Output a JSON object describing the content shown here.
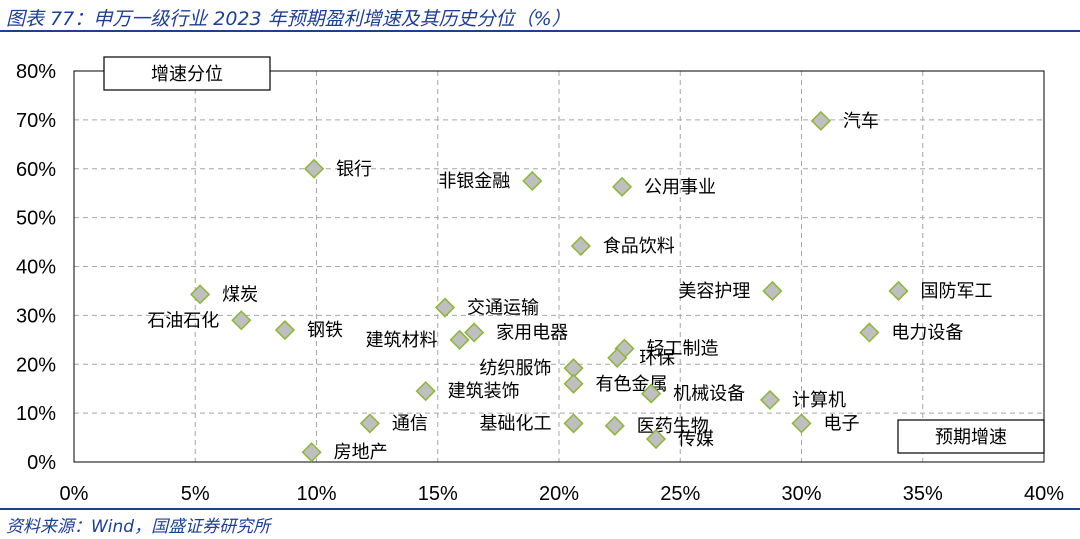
{
  "header": {
    "title": "图表 77：申万一级行业 2023 年预期盈利增速及其历史分位（%）"
  },
  "footer": {
    "source": "资料来源：Wind，国盛证券研究所"
  },
  "chart_data": {
    "type": "scatter",
    "xlabel": "预期增速",
    "ylabel": "增速分位",
    "xlim": [
      0,
      40
    ],
    "ylim": [
      0,
      80
    ],
    "x_ticks": [
      "0%",
      "5%",
      "10%",
      "15%",
      "20%",
      "25%",
      "30%",
      "35%",
      "40%"
    ],
    "y_ticks": [
      "0%",
      "10%",
      "20%",
      "30%",
      "40%",
      "50%",
      "60%",
      "70%",
      "80%"
    ],
    "grid": "dashed",
    "marker": "diamond",
    "marker_fill": "#bfbfbf",
    "marker_stroke": "#8db43c",
    "points": [
      {
        "name": "汽车",
        "x": 30.8,
        "y": 69.8,
        "pos": "right"
      },
      {
        "name": "银行",
        "x": 9.9,
        "y": 60.0,
        "pos": "right"
      },
      {
        "name": "非银金融",
        "x": 18.9,
        "y": 57.5,
        "pos": "left"
      },
      {
        "name": "公用事业",
        "x": 22.6,
        "y": 56.3,
        "pos": "right"
      },
      {
        "name": "食品饮料",
        "x": 20.9,
        "y": 44.2,
        "pos": "right"
      },
      {
        "name": "煤炭",
        "x": 5.2,
        "y": 34.3,
        "pos": "right"
      },
      {
        "name": "美容护理",
        "x": 28.8,
        "y": 35.0,
        "pos": "left"
      },
      {
        "name": "国防军工",
        "x": 34.0,
        "y": 35.0,
        "pos": "right"
      },
      {
        "name": "交通运输",
        "x": 15.3,
        "y": 31.6,
        "pos": "right"
      },
      {
        "name": "石油石化",
        "x": 6.9,
        "y": 29.0,
        "pos": "left"
      },
      {
        "name": "钢铁",
        "x": 8.7,
        "y": 27.0,
        "pos": "right"
      },
      {
        "name": "建筑材料",
        "x": 15.9,
        "y": 25.0,
        "pos": "left"
      },
      {
        "name": "家用电器",
        "x": 16.5,
        "y": 26.5,
        "pos": "right"
      },
      {
        "name": "电力设备",
        "x": 32.8,
        "y": 26.5,
        "pos": "right"
      },
      {
        "name": "轻工制造",
        "x": 22.7,
        "y": 23.2,
        "pos": "right"
      },
      {
        "name": "环保",
        "x": 22.4,
        "y": 21.3,
        "pos": "right"
      },
      {
        "name": "纺织服饰",
        "x": 20.6,
        "y": 19.2,
        "pos": "left"
      },
      {
        "name": "有色金属",
        "x": 20.6,
        "y": 16.0,
        "pos": "right"
      },
      {
        "name": "建筑装饰",
        "x": 14.5,
        "y": 14.5,
        "pos": "right"
      },
      {
        "name": "机械设备",
        "x": 23.8,
        "y": 14.0,
        "pos": "right"
      },
      {
        "name": "计算机",
        "x": 28.7,
        "y": 12.7,
        "pos": "right"
      },
      {
        "name": "通信",
        "x": 12.2,
        "y": 7.9,
        "pos": "right"
      },
      {
        "name": "基础化工",
        "x": 20.6,
        "y": 7.9,
        "pos": "left"
      },
      {
        "name": "医药生物",
        "x": 22.3,
        "y": 7.4,
        "pos": "right"
      },
      {
        "name": "电子",
        "x": 30.0,
        "y": 7.9,
        "pos": "right"
      },
      {
        "name": "传媒",
        "x": 24.0,
        "y": 4.7,
        "pos": "right"
      },
      {
        "name": "房地产",
        "x": 9.8,
        "y": 2.0,
        "pos": "right"
      }
    ]
  }
}
